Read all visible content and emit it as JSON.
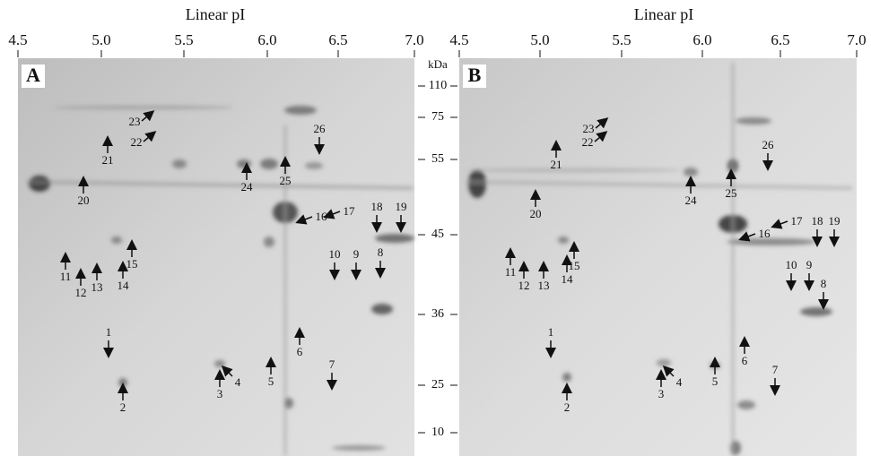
{
  "panels": [
    {
      "label": "A",
      "axis_title": "Linear pI",
      "pi_ticks": [
        "4.5",
        "5.0",
        "5.5",
        "6.0",
        "6.5",
        "7.0"
      ],
      "spots": [
        "1",
        "2",
        "3",
        "4",
        "5",
        "6",
        "7",
        "8",
        "9",
        "10",
        "11",
        "12",
        "13",
        "14",
        "15",
        "16",
        "17",
        "18",
        "19",
        "20",
        "21",
        "22",
        "23",
        "24",
        "25",
        "26"
      ]
    },
    {
      "label": "B",
      "axis_title": "Linear pI",
      "pi_ticks": [
        "4.5",
        "5.0",
        "5.5",
        "6.0",
        "6.5",
        "7.0"
      ],
      "spots": [
        "1",
        "2",
        "3",
        "4",
        "5",
        "6",
        "7",
        "8",
        "9",
        "10",
        "11",
        "12",
        "13",
        "14",
        "15",
        "16",
        "17",
        "18",
        "19",
        "20",
        "21",
        "22",
        "23",
        "24",
        "25",
        "26"
      ]
    }
  ],
  "mw_axis": {
    "unit": "kDa",
    "ticks": [
      "110",
      "75",
      "55",
      "45",
      "36",
      "25",
      "10"
    ]
  }
}
